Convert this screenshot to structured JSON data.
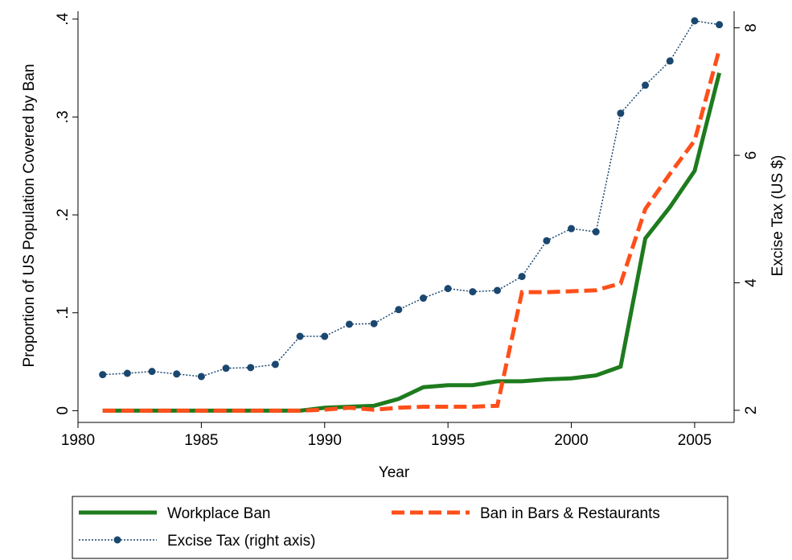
{
  "chart_data": {
    "type": "line",
    "x_label": "Year",
    "y_label": "Proportion of US Population Covered by Ban",
    "y2_label": "Excise Tax (US $)",
    "x": [
      1981,
      1982,
      1983,
      1984,
      1985,
      1986,
      1987,
      1988,
      1989,
      1990,
      1991,
      1992,
      1993,
      1994,
      1995,
      1996,
      1997,
      1998,
      1999,
      2000,
      2001,
      2002,
      2003,
      2004,
      2005,
      2006
    ],
    "series": [
      {
        "name": "Workplace Ban",
        "color": "#1e7b1e",
        "style": "solid",
        "values": [
          0,
          0,
          0,
          0,
          0,
          0,
          0,
          0,
          0,
          0.003,
          0.004,
          0.005,
          0.012,
          0.024,
          0.026,
          0.026,
          0.03,
          0.03,
          0.032,
          0.033,
          0.036,
          0.045,
          0.176,
          0.208,
          0.245,
          0.345
        ]
      },
      {
        "name": "Ban in Bars & Restaurants",
        "color": "#ff4f1a",
        "style": "dash",
        "values": [
          0,
          0,
          0,
          0,
          0,
          0,
          0,
          0,
          0,
          0.001,
          0.003,
          0.001,
          0.003,
          0.004,
          0.004,
          0.004,
          0.005,
          0.121,
          0.121,
          0.122,
          0.123,
          0.13,
          0.206,
          0.242,
          0.276,
          0.369
        ]
      },
      {
        "name": "Excise Tax (right axis)",
        "color": "#1a476f",
        "style": "dot",
        "markers": true,
        "axis": "y2",
        "values": [
          2.56,
          2.58,
          2.61,
          2.57,
          2.53,
          2.66,
          2.67,
          2.72,
          3.16,
          3.16,
          3.35,
          3.36,
          3.58,
          3.76,
          3.91,
          3.86,
          3.88,
          4.1,
          4.66,
          4.85,
          4.8,
          6.66,
          7.1,
          7.48,
          8.11,
          8.05
        ]
      }
    ],
    "xlim": [
      1980,
      2006.6
    ],
    "xticks": [
      1980,
      1985,
      1990,
      1995,
      2000,
      2005
    ],
    "ylim": [
      -0.012,
      0.408
    ],
    "yticks": [
      0,
      {
        "value": 0.1,
        "label": ".1"
      },
      {
        "value": 0.2,
        "label": ".2"
      },
      {
        "value": 0.3,
        "label": ".3"
      },
      {
        "value": 0.4,
        "label": ".4"
      }
    ],
    "y2lim": [
      1.81,
      8.26
    ],
    "y2ticks": [
      2,
      4,
      6,
      8
    ],
    "grid": false,
    "legend": "bottom"
  }
}
